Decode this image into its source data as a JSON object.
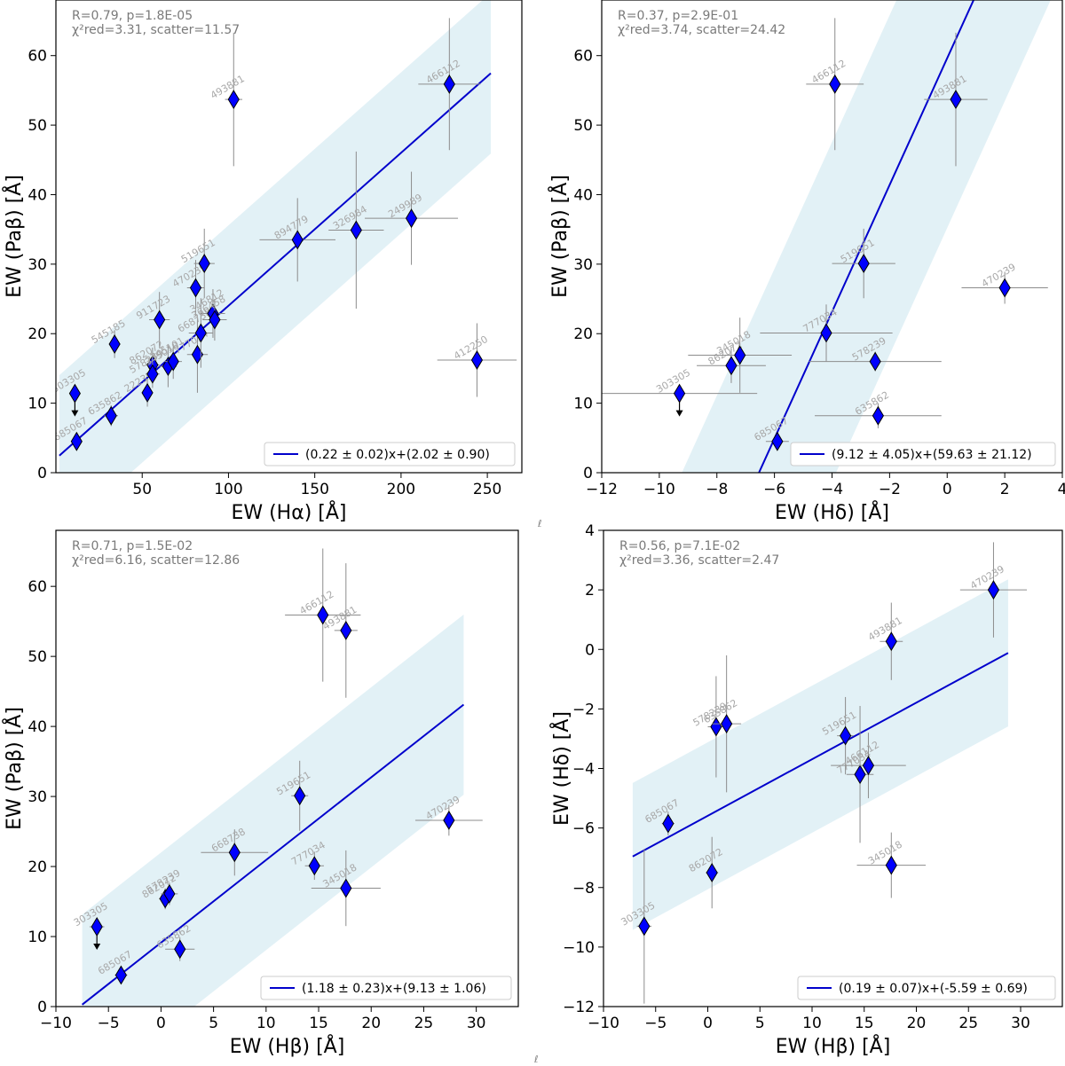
{
  "figure_notes": {
    "stray_a": "ℓ",
    "stray_b": "ℓ"
  },
  "chart_data": [
    {
      "id": "p1",
      "type": "scatter",
      "xlabel": "EW (Hα) [Å]",
      "ylabel": "EW (Paβ) [Å]",
      "xlim": [
        0,
        270
      ],
      "ylim": [
        0,
        68
      ],
      "xticks": [
        50,
        100,
        150,
        200,
        250
      ],
      "yticks": [
        0,
        10,
        20,
        30,
        40,
        50,
        60
      ],
      "stats_line1": "R=0.79, p=1.8E-05",
      "stats_line2": "χ²red=3.31, scatter=11.57",
      "fit": {
        "slope": 0.22,
        "intercept": 2.02,
        "x_range": [
          2,
          252
        ],
        "band": 11.57
      },
      "legend": "(0.22 ± 0.02)x+(2.02 ± 0.90)",
      "points": [
        {
          "label": "303305",
          "x": 11,
          "y": 11.4,
          "xerr": 0,
          "yerr": 0,
          "upper": true
        },
        {
          "label": "685067",
          "x": 12,
          "y": 4.5,
          "xerr": 2,
          "yerr": 1
        },
        {
          "label": "635862",
          "x": 32,
          "y": 8.2,
          "xerr": 4,
          "yerr": 1.5
        },
        {
          "label": "545185",
          "x": 34,
          "y": 18.5,
          "xerr": 3,
          "yerr": 2
        },
        {
          "label": "911723",
          "x": 60,
          "y": 22,
          "xerr": 6,
          "yerr": 4
        },
        {
          "label": "862072",
          "x": 56,
          "y": 15.5,
          "xerr": 4,
          "yerr": 2.5
        },
        {
          "label": "222391",
          "x": 53,
          "y": 11.5,
          "xerr": 3,
          "yerr": 2
        },
        {
          "label": "578239",
          "x": 56,
          "y": 14.2,
          "xerr": 4,
          "yerr": 2
        },
        {
          "label": "345018",
          "x": 65,
          "y": 15.3,
          "xerr": 5,
          "yerr": 3
        },
        {
          "label": "345101",
          "x": 68,
          "y": 16.0,
          "xerr": 5,
          "yerr": 2.5
        },
        {
          "label": "470239",
          "x": 81,
          "y": 26.6,
          "xerr": 5,
          "yerr": 4
        },
        {
          "label": "519651",
          "x": 86,
          "y": 30.1,
          "xerr": 6,
          "yerr": 5
        },
        {
          "label": "777034",
          "x": 82,
          "y": 17.0,
          "xerr": 6,
          "yerr": 5.5
        },
        {
          "label": "668738",
          "x": 84,
          "y": 20.1,
          "xerr": 7,
          "yerr": 5
        },
        {
          "label": "346812",
          "x": 91,
          "y": 22.9,
          "xerr": 7,
          "yerr": 3.5
        },
        {
          "label": "366458",
          "x": 92,
          "y": 22.0,
          "xerr": 7,
          "yerr": 3
        },
        {
          "label": "493881",
          "x": 103,
          "y": 53.7,
          "xerr": 5,
          "yerr": 9.6
        },
        {
          "label": "894779",
          "x": 140,
          "y": 33.5,
          "xerr": 22,
          "yerr": 6
        },
        {
          "label": "326984",
          "x": 174,
          "y": 34.9,
          "xerr": 16,
          "yerr": 11.3
        },
        {
          "label": "249989",
          "x": 206,
          "y": 36.6,
          "xerr": 27,
          "yerr": 6.7
        },
        {
          "label": "466112",
          "x": 228,
          "y": 55.9,
          "xerr": 18,
          "yerr": 9.5
        },
        {
          "label": "412250",
          "x": 244,
          "y": 16.2,
          "xerr": 23,
          "yerr": 5.3
        }
      ]
    },
    {
      "id": "p2",
      "type": "scatter",
      "xlabel": "EW (Hδ) [Å]",
      "ylabel": "EW (Paβ) [Å]",
      "xlim": [
        -12,
        4
      ],
      "ylim": [
        0,
        68
      ],
      "xticks": [
        -12,
        -10,
        -8,
        -6,
        -4,
        -2,
        0,
        2,
        4
      ],
      "yticks": [
        0,
        10,
        20,
        30,
        40,
        50,
        60
      ],
      "stats_line1": "R=0.37, p=2.9E-01",
      "stats_line2": "χ²red=3.74, scatter=24.42",
      "fit": {
        "slope": 9.12,
        "intercept": 59.63,
        "x_range": [
          -12,
          4
        ],
        "band": 24.42
      },
      "legend": "(9.12 ± 4.05)x+(59.63 ± 21.12)",
      "points": [
        {
          "label": "303305",
          "x": -9.3,
          "y": 11.4,
          "xerr": 2.7,
          "yerr": 0,
          "upper": true
        },
        {
          "label": "685067",
          "x": -5.9,
          "y": 4.5,
          "xerr": 0.4,
          "yerr": 1
        },
        {
          "label": "862072",
          "x": -7.5,
          "y": 15.4,
          "xerr": 1.2,
          "yerr": 2.5
        },
        {
          "label": "345018",
          "x": -7.2,
          "y": 16.9,
          "xerr": 1.8,
          "yerr": 5.4
        },
        {
          "label": "777034",
          "x": -4.2,
          "y": 20.1,
          "xerr": 2.3,
          "yerr": 4.1
        },
        {
          "label": "578239",
          "x": -2.5,
          "y": 16.0,
          "xerr": 2.3,
          "yerr": 1.4
        },
        {
          "label": "635862",
          "x": -2.4,
          "y": 8.2,
          "xerr": 2.2,
          "yerr": 1.8
        },
        {
          "label": "519651",
          "x": -2.9,
          "y": 30.1,
          "xerr": 1.1,
          "yerr": 5
        },
        {
          "label": "466112",
          "x": -3.9,
          "y": 55.9,
          "xerr": 1.0,
          "yerr": 9.5
        },
        {
          "label": "493881",
          "x": 0.3,
          "y": 53.7,
          "xerr": 1.1,
          "yerr": 9.6
        },
        {
          "label": "470239",
          "x": 2.0,
          "y": 26.6,
          "xerr": 1.5,
          "yerr": 2.3
        }
      ]
    },
    {
      "id": "p3",
      "type": "scatter",
      "xlabel": "EW (Hβ) [Å]",
      "ylabel": "EW (Paβ) [Å]",
      "xlim": [
        -10,
        34
      ],
      "ylim": [
        0,
        68
      ],
      "xticks": [
        -10,
        -5,
        0,
        5,
        10,
        15,
        20,
        25,
        30
      ],
      "yticks": [
        0,
        10,
        20,
        30,
        40,
        50,
        60
      ],
      "stats_line1": "R=0.71, p=1.5E-02",
      "stats_line2": "χ²red=6.16, scatter=12.86",
      "fit": {
        "slope": 1.18,
        "intercept": 9.13,
        "x_range": [
          -7.5,
          28.8
        ],
        "band": 12.86
      },
      "legend": "(1.18 ± 0.23)x+(9.13 ± 1.06)",
      "points": [
        {
          "label": "303305",
          "x": -6.1,
          "y": 11.4,
          "xerr": 0.7,
          "yerr": 0,
          "upper": true
        },
        {
          "label": "685067",
          "x": -3.8,
          "y": 4.5,
          "xerr": 0.6,
          "yerr": 1
        },
        {
          "label": "862072",
          "x": 0.4,
          "y": 15.4,
          "xerr": 0.6,
          "yerr": 1.5
        },
        {
          "label": "578239",
          "x": 0.8,
          "y": 16.1,
          "xerr": 0.8,
          "yerr": 1.6
        },
        {
          "label": "635862",
          "x": 1.8,
          "y": 8.2,
          "xerr": 1.4,
          "yerr": 1.7
        },
        {
          "label": "668738",
          "x": 7.0,
          "y": 22.0,
          "xerr": 3.2,
          "yerr": 3.3
        },
        {
          "label": "519651",
          "x": 13.2,
          "y": 30.1,
          "xerr": 0.8,
          "yerr": 5
        },
        {
          "label": "777034",
          "x": 14.6,
          "y": 20.1,
          "xerr": 0.9,
          "yerr": 2
        },
        {
          "label": "345018",
          "x": 17.6,
          "y": 16.9,
          "xerr": 3.3,
          "yerr": 5.4
        },
        {
          "label": "466112",
          "x": 15.4,
          "y": 55.9,
          "xerr": 3.6,
          "yerr": 9.5
        },
        {
          "label": "493881",
          "x": 17.6,
          "y": 53.7,
          "xerr": 1.1,
          "yerr": 9.6
        },
        {
          "label": "470239",
          "x": 27.4,
          "y": 26.6,
          "xerr": 3.2,
          "yerr": 2.2
        }
      ]
    },
    {
      "id": "p4",
      "type": "scatter",
      "xlabel": "EW (Hβ) [Å]",
      "ylabel": "EW (Hδ) [Å]",
      "xlim": [
        -10,
        34
      ],
      "ylim": [
        -12,
        4
      ],
      "xticks": [
        -10,
        -5,
        0,
        5,
        10,
        15,
        20,
        25,
        30
      ],
      "yticks": [
        -12,
        -10,
        -8,
        -6,
        -4,
        -2,
        0,
        2,
        4
      ],
      "stats_line1": "R=0.56, p=7.1E-02",
      "stats_line2": "χ²red=3.36, scatter=2.47",
      "fit": {
        "slope": 0.19,
        "intercept": -5.59,
        "x_range": [
          -7.2,
          28.8
        ],
        "band": 2.47
      },
      "legend": "(0.19 ± 0.07)x+(-5.59 ± 0.69)",
      "points": [
        {
          "label": "303305",
          "x": -6.1,
          "y": -9.3,
          "xerr": 0.7,
          "yerr": 2.6
        },
        {
          "label": "685067",
          "x": -3.8,
          "y": -5.85,
          "xerr": 0.6,
          "yerr": 0.4
        },
        {
          "label": "862072",
          "x": 0.4,
          "y": -7.5,
          "xerr": 0.6,
          "yerr": 1.2
        },
        {
          "label": "578239",
          "x": 0.8,
          "y": -2.6,
          "xerr": 0.8,
          "yerr": 1.7
        },
        {
          "label": "635862",
          "x": 1.8,
          "y": -2.5,
          "xerr": 1.4,
          "yerr": 2.3
        },
        {
          "label": "519651",
          "x": 13.2,
          "y": -2.9,
          "xerr": 0.8,
          "yerr": 1.3
        },
        {
          "label": "777034",
          "x": 14.6,
          "y": -4.2,
          "xerr": 1.3,
          "yerr": 2.3
        },
        {
          "label": "466112",
          "x": 15.4,
          "y": -3.9,
          "xerr": 3.6,
          "yerr": 1.1
        },
        {
          "label": "345018",
          "x": 17.6,
          "y": -7.25,
          "xerr": 3.3,
          "yerr": 1.1
        },
        {
          "label": "493881",
          "x": 17.6,
          "y": 0.27,
          "xerr": 1.1,
          "yerr": 1.3
        },
        {
          "label": "470239",
          "x": 27.4,
          "y": 2.0,
          "xerr": 3.2,
          "yerr": 1.6
        }
      ]
    }
  ]
}
